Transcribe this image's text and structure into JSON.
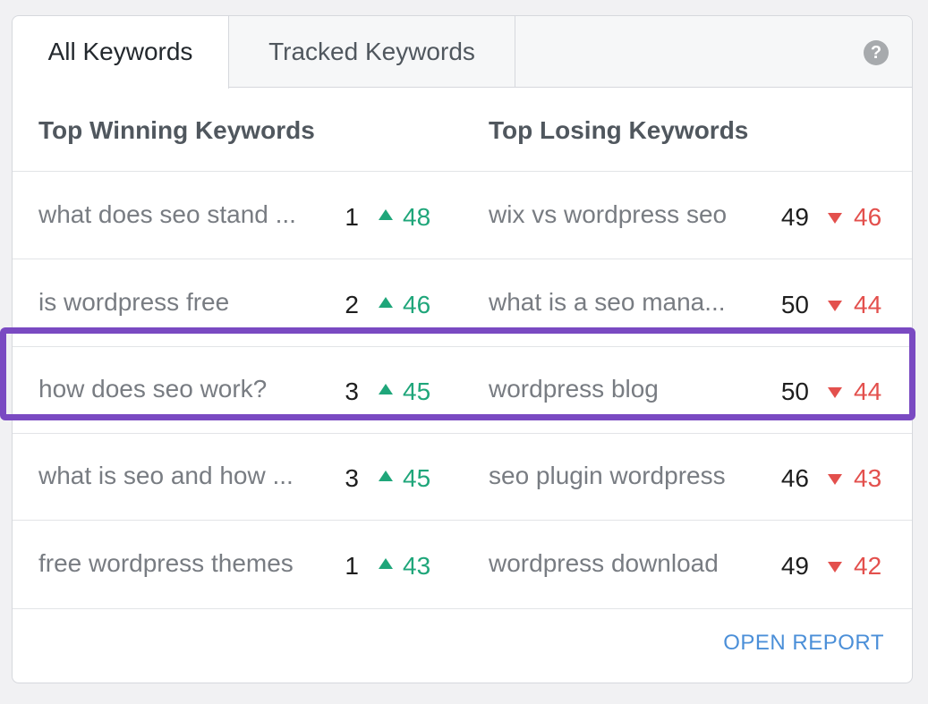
{
  "tabs": [
    {
      "label": "All Keywords"
    },
    {
      "label": "Tracked Keywords"
    }
  ],
  "help_label": "?",
  "columns": {
    "winning_title": "Top Winning Keywords",
    "losing_title": "Top Losing Keywords"
  },
  "rows": [
    {
      "win_kw": "what does seo stand ...",
      "win_pos": "1",
      "win_change": "48",
      "lose_kw": "wix vs wordpress seo",
      "lose_pos": "49",
      "lose_change": "46"
    },
    {
      "win_kw": "is wordpress free",
      "win_pos": "2",
      "win_change": "46",
      "lose_kw": "what is a seo mana...",
      "lose_pos": "50",
      "lose_change": "44"
    },
    {
      "win_kw": "how does seo work?",
      "win_pos": "3",
      "win_change": "45",
      "lose_kw": "wordpress blog",
      "lose_pos": "50",
      "lose_change": "44"
    },
    {
      "win_kw": "what is seo and how ...",
      "win_pos": "3",
      "win_change": "45",
      "lose_kw": "seo plugin wordpress",
      "lose_pos": "46",
      "lose_change": "43"
    },
    {
      "win_kw": "free wordpress themes",
      "win_pos": "1",
      "win_change": "43",
      "lose_kw": "wordpress download",
      "lose_pos": "49",
      "lose_change": "42"
    }
  ],
  "footer": {
    "open_report": "OPEN REPORT"
  },
  "colors": {
    "up": "#1fa67a",
    "down": "#e3504d",
    "highlight": "#7a4ac2",
    "link": "#4b8fd8"
  }
}
